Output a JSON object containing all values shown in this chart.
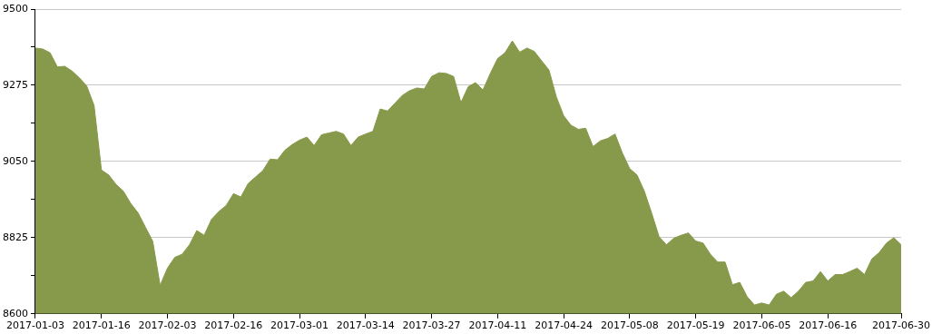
{
  "chart_data": {
    "type": "area",
    "categories": [
      "2017-01-03",
      null,
      null,
      null,
      null,
      null,
      null,
      null,
      null,
      "2017-01-16",
      null,
      null,
      null,
      null,
      null,
      null,
      null,
      null,
      "2017-02-03",
      null,
      null,
      null,
      null,
      null,
      null,
      null,
      null,
      "2017-02-16",
      null,
      null,
      null,
      null,
      null,
      null,
      null,
      null,
      "2017-03-01",
      null,
      null,
      null,
      null,
      null,
      null,
      null,
      null,
      "2017-03-14",
      null,
      null,
      null,
      null,
      null,
      null,
      null,
      null,
      "2017-03-27",
      null,
      null,
      null,
      null,
      null,
      null,
      null,
      null,
      "2017-04-11",
      null,
      null,
      null,
      null,
      null,
      null,
      null,
      null,
      "2017-04-24",
      null,
      null,
      null,
      null,
      null,
      null,
      null,
      null,
      "2017-05-08",
      null,
      null,
      null,
      null,
      null,
      null,
      null,
      null,
      "2017-05-19",
      null,
      null,
      null,
      null,
      null,
      null,
      null,
      null,
      "2017-06-05",
      null,
      null,
      null,
      null,
      null,
      null,
      null,
      null,
      "2017-06-16",
      null,
      null,
      null,
      null,
      null,
      null,
      null,
      null,
      null,
      "2017-06-30"
    ],
    "series": [
      {
        "color": "#879a4b",
        "values": [
          9385,
          9382,
          9371,
          9329,
          9331,
          9317,
          9297,
          9273,
          9215,
          9025,
          9010,
          8982,
          8962,
          8926,
          8898,
          8856,
          8814,
          8684,
          8735,
          8767,
          8776,
          8804,
          8846,
          8832,
          8879,
          8902,
          8920,
          8955,
          8945,
          8985,
          9004,
          9023,
          9057,
          9055,
          9083,
          9100,
          9113,
          9122,
          9097,
          9129,
          9134,
          9139,
          9131,
          9097,
          9122,
          9131,
          9139,
          9205,
          9199,
          9222,
          9245,
          9259,
          9267,
          9264,
          9301,
          9312,
          9310,
          9301,
          9224,
          9271,
          9283,
          9261,
          9310,
          9354,
          9371,
          9406,
          9373,
          9385,
          9375,
          9347,
          9320,
          9241,
          9185,
          9157,
          9145,
          9148,
          9094,
          9111,
          9118,
          9131,
          9075,
          9029,
          9010,
          8962,
          8897,
          8828,
          8804,
          8823,
          8832,
          8839,
          8815,
          8809,
          8776,
          8753,
          8753,
          8686,
          8693,
          8651,
          8626,
          8632,
          8626,
          8658,
          8667,
          8648,
          8667,
          8693,
          8697,
          8725,
          8697,
          8716,
          8716,
          8725,
          8735,
          8716,
          8762,
          8781,
          8809,
          8825,
          8804
        ]
      }
    ],
    "ylim": [
      8600,
      9500
    ],
    "yticks": [
      8600,
      {
        "value": 8712.5,
        "label": null
      },
      8825,
      {
        "value": 8937.5,
        "label": null
      },
      9050,
      {
        "value": 9162.5,
        "label": null
      },
      9275,
      {
        "value": 9387.5,
        "label": null
      },
      9500
    ],
    "grid": "y"
  }
}
